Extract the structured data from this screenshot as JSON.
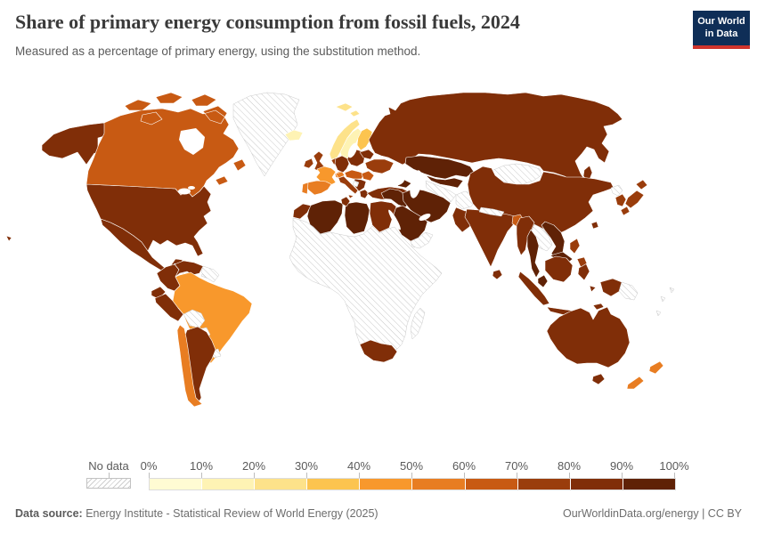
{
  "header": {
    "title": "Share of primary energy consumption from fossil fuels, 2024",
    "subtitle": "Measured as a percentage of primary energy, using the substitution method."
  },
  "logo": {
    "line1": "Our World",
    "line2": "in Data",
    "bg": "#0f2e57",
    "accent": "#d0342c"
  },
  "legend": {
    "no_data_label": "No data"
  },
  "footer": {
    "source_label": "Data source:",
    "source_text": " Energy Institute - Statistical Review of World Energy (2025)",
    "right_text": "OurWorldinData.org/energy | CC BY"
  },
  "chart_data": {
    "type": "choropleth_map",
    "title": "Share of primary energy consumption from fossil fuels, 2024",
    "year": 2024,
    "unit": "%",
    "legend_position": "bottom",
    "scale": {
      "tick_labels": [
        "0%",
        "10%",
        "20%",
        "30%",
        "40%",
        "50%",
        "60%",
        "70%",
        "80%",
        "90%",
        "100%"
      ],
      "ranges": [
        "0-10%",
        "10-20%",
        "20-30%",
        "30-40%",
        "40-50%",
        "50-60%",
        "60-70%",
        "70-80%",
        "80-90%",
        "90-100%"
      ],
      "colors": [
        "#FFFBD3",
        "#FEF3B4",
        "#FDE28A",
        "#FCC44F",
        "#F8982C",
        "#E87D22",
        "#C85A13",
        "#9A3D0C",
        "#802E08",
        "#5F2206"
      ],
      "no_data_color": "hatched"
    },
    "countries": [
      {
        "id": "usa",
        "name": "United States",
        "bin": 8
      },
      {
        "id": "canada",
        "name": "Canada",
        "bin": 6
      },
      {
        "id": "greenland",
        "name": "Greenland",
        "bin": null
      },
      {
        "id": "mexico",
        "name": "Mexico",
        "bin": 8
      },
      {
        "id": "central_america",
        "name": "Central America",
        "bin": null
      },
      {
        "id": "cuba",
        "name": "Cuba",
        "bin": null
      },
      {
        "id": "hispaniola",
        "name": "Hispaniola",
        "bin": null
      },
      {
        "id": "colombia",
        "name": "Colombia",
        "bin": 8
      },
      {
        "id": "venezuela",
        "name": "Venezuela",
        "bin": 8
      },
      {
        "id": "guyana_suriname",
        "name": "Guyana and Suriname",
        "bin": null
      },
      {
        "id": "ecuador",
        "name": "Ecuador",
        "bin": 8
      },
      {
        "id": "peru",
        "name": "Peru",
        "bin": 8
      },
      {
        "id": "brazil",
        "name": "Brazil",
        "bin": 4
      },
      {
        "id": "bolivia",
        "name": "Bolivia",
        "bin": null
      },
      {
        "id": "paraguay",
        "name": "Paraguay",
        "bin": null
      },
      {
        "id": "uruguay",
        "name": "Uruguay",
        "bin": null
      },
      {
        "id": "argentina",
        "name": "Argentina",
        "bin": 8
      },
      {
        "id": "chile",
        "name": "Chile",
        "bin": 5
      },
      {
        "id": "iceland",
        "name": "Iceland",
        "bin": 1
      },
      {
        "id": "svalbard",
        "name": "Svalbard",
        "bin": 2
      },
      {
        "id": "norway",
        "name": "Norway",
        "bin": 2
      },
      {
        "id": "sweden",
        "name": "Sweden",
        "bin": 1
      },
      {
        "id": "finland",
        "name": "Finland",
        "bin": 3
      },
      {
        "id": "denmark",
        "name": "Denmark",
        "bin": 5
      },
      {
        "id": "uk",
        "name": "United Kingdom",
        "bin": 7
      },
      {
        "id": "ireland",
        "name": "Ireland",
        "bin": 7
      },
      {
        "id": "france",
        "name": "France",
        "bin": 4
      },
      {
        "id": "spain",
        "name": "Spain",
        "bin": 5
      },
      {
        "id": "portugal",
        "name": "Portugal",
        "bin": 5
      },
      {
        "id": "low_countries",
        "name": "Netherlands and Belgium",
        "bin": 7
      },
      {
        "id": "germany",
        "name": "Germany",
        "bin": 8
      },
      {
        "id": "switzerland",
        "name": "Switzerland",
        "bin": 5
      },
      {
        "id": "austria_hungary",
        "name": "Austria and Hungary",
        "bin": 6
      },
      {
        "id": "italy",
        "name": "Italy",
        "bin": 7
      },
      {
        "id": "poland_baltics",
        "name": "Poland and Baltics",
        "bin": 8
      },
      {
        "id": "belarus",
        "name": "Belarus",
        "bin": 8
      },
      {
        "id": "ukraine",
        "name": "Ukraine",
        "bin": 7
      },
      {
        "id": "romania",
        "name": "Romania",
        "bin": 6
      },
      {
        "id": "balkans",
        "name": "Balkans",
        "bin": 8
      },
      {
        "id": "west_balkans_nd",
        "name": "Bosnia and Albania",
        "bin": null
      },
      {
        "id": "greece",
        "name": "Greece",
        "bin": 8
      },
      {
        "id": "turkey",
        "name": "Turkey",
        "bin": 8
      },
      {
        "id": "caucasus",
        "name": "Caucasus",
        "bin": 9
      },
      {
        "id": "russia",
        "name": "Russia",
        "bin": 8
      },
      {
        "id": "kazakhstan",
        "name": "Kazakhstan",
        "bin": 9
      },
      {
        "id": "uzbekistan",
        "name": "Uzbekistan",
        "bin": 9
      },
      {
        "id": "turkmenistan",
        "name": "Turkmenistan",
        "bin": null
      },
      {
        "id": "afghanistan",
        "name": "Afghanistan",
        "bin": null
      },
      {
        "id": "mongolia",
        "name": "Mongolia",
        "bin": null
      },
      {
        "id": "china",
        "name": "China",
        "bin": 8
      },
      {
        "id": "pakistan",
        "name": "Pakistan",
        "bin": 8
      },
      {
        "id": "india",
        "name": "India",
        "bin": 8
      },
      {
        "id": "nepal_bhutan",
        "name": "Nepal and Bhutan",
        "bin": null
      },
      {
        "id": "bangladesh",
        "name": "Bangladesh",
        "bin": 6
      },
      {
        "id": "sri_lanka",
        "name": "Sri Lanka",
        "bin": 8
      },
      {
        "id": "myanmar",
        "name": "Myanmar",
        "bin": 8
      },
      {
        "id": "laos_cambodia",
        "name": "Laos and Cambodia",
        "bin": null
      },
      {
        "id": "thailand",
        "name": "Thailand",
        "bin": 9
      },
      {
        "id": "vietnam",
        "name": "Vietnam",
        "bin": 9
      },
      {
        "id": "malaysia",
        "name": "Malaysia",
        "bin": 9
      },
      {
        "id": "indonesia",
        "name": "Indonesia",
        "bin": 8
      },
      {
        "id": "philippines",
        "name": "Philippines",
        "bin": 7
      },
      {
        "id": "taiwan",
        "name": "Taiwan",
        "bin": 8
      },
      {
        "id": "north_korea",
        "name": "North Korea",
        "bin": null
      },
      {
        "id": "south_korea",
        "name": "South Korea",
        "bin": 7
      },
      {
        "id": "japan",
        "name": "Japan",
        "bin": 7
      },
      {
        "id": "iraq_levant",
        "name": "Iraq and Levant",
        "bin": 9
      },
      {
        "id": "iran",
        "name": "Iran",
        "bin": 9
      },
      {
        "id": "saudi_arabia",
        "name": "Saudi Arabia",
        "bin": 9
      },
      {
        "id": "yemen_oman",
        "name": "Yemen and Oman",
        "bin": null
      },
      {
        "id": "egypt",
        "name": "Egypt",
        "bin": 8
      },
      {
        "id": "libya",
        "name": "Libya",
        "bin": 9
      },
      {
        "id": "algeria",
        "name": "Algeria",
        "bin": 9
      },
      {
        "id": "tunisia",
        "name": "Tunisia",
        "bin": 8
      },
      {
        "id": "morocco",
        "name": "Morocco",
        "bin": 8
      },
      {
        "id": "africa_other",
        "name": "Sub-Saharan Africa",
        "bin": null
      },
      {
        "id": "south_africa",
        "name": "South Africa",
        "bin": 8
      },
      {
        "id": "madagascar",
        "name": "Madagascar",
        "bin": null
      },
      {
        "id": "new_guinea_west",
        "name": "Papua (Indonesia)",
        "bin": 8
      },
      {
        "id": "papua_new_guinea",
        "name": "Papua New Guinea",
        "bin": null
      },
      {
        "id": "pacific_islands",
        "name": "Pacific Islands",
        "bin": null
      },
      {
        "id": "australia",
        "name": "Australia",
        "bin": 8
      },
      {
        "id": "new_zealand",
        "name": "New Zealand",
        "bin": 5
      }
    ]
  }
}
